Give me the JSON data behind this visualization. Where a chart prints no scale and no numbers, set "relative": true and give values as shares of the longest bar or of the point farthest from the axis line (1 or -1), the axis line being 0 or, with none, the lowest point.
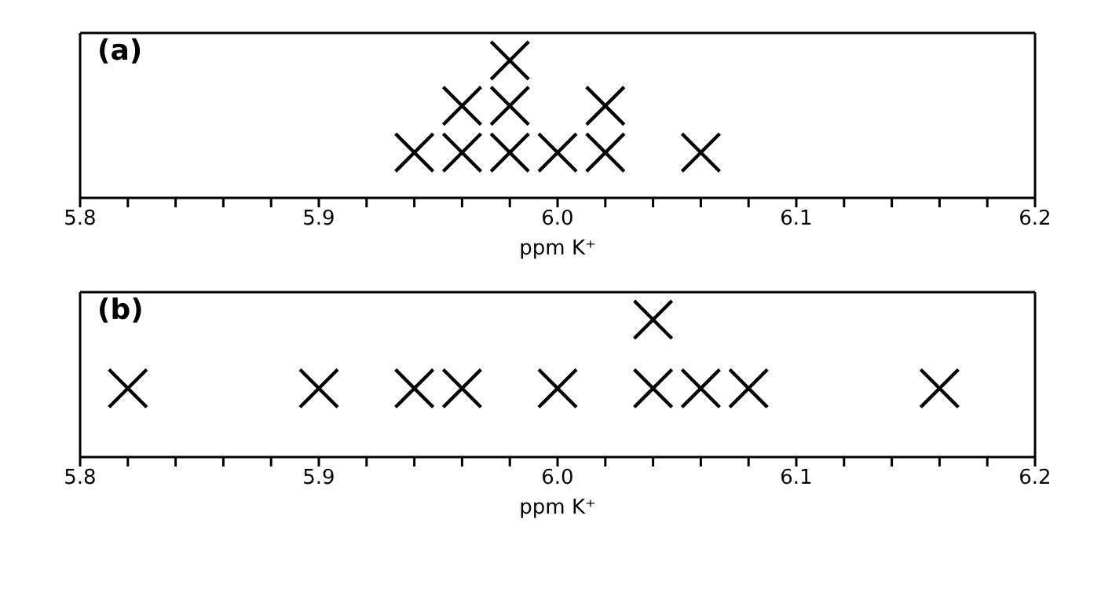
{
  "chart_data": [
    {
      "type": "scatter",
      "title": "(a)",
      "xlabel": "ppm K⁺",
      "marker": "cross",
      "relative": true,
      "tick_labels": "x",
      "legend": false,
      "xlim": [
        5.8,
        6.2
      ],
      "xticks": [
        5.8,
        {
          "value": 5.82,
          "label": null
        },
        {
          "value": 5.84,
          "label": null
        },
        {
          "value": 5.86,
          "label": null
        },
        {
          "value": 5.88,
          "label": null
        },
        5.9,
        {
          "value": 5.92,
          "label": null
        },
        {
          "value": 5.94,
          "label": null
        },
        {
          "value": 5.96,
          "label": null
        },
        {
          "value": 5.98,
          "label": null
        },
        {
          "value": 6.0,
          "label": "6.0"
        },
        {
          "value": 6.02,
          "label": null
        },
        {
          "value": 6.04,
          "label": null
        },
        {
          "value": 6.06,
          "label": null
        },
        {
          "value": 6.08,
          "label": null
        },
        6.1,
        {
          "value": 6.12,
          "label": null
        },
        {
          "value": 6.14,
          "label": null
        },
        {
          "value": 6.16,
          "label": null
        },
        {
          "value": 6.18,
          "label": null
        },
        6.2
      ],
      "series": [
        {
          "color": "#000000",
          "x": [
            5.94,
            5.96,
            5.96,
            5.98,
            5.98,
            5.98,
            6.0,
            6.02,
            6.02,
            6.06
          ],
          "values": [
            0.33,
            0.33,
            0.67,
            0.33,
            0.67,
            1,
            0.33,
            0.33,
            0.67,
            0.33
          ]
        }
      ]
    },
    {
      "type": "scatter",
      "title": "(b)",
      "xlabel": "ppm K⁺",
      "marker": "cross",
      "relative": true,
      "tick_labels": "x",
      "legend": false,
      "xlim": [
        5.8,
        6.2
      ],
      "xticks": [
        5.8,
        {
          "value": 5.82,
          "label": null
        },
        {
          "value": 5.84,
          "label": null
        },
        {
          "value": 5.86,
          "label": null
        },
        {
          "value": 5.88,
          "label": null
        },
        5.9,
        {
          "value": 5.92,
          "label": null
        },
        {
          "value": 5.94,
          "label": null
        },
        {
          "value": 5.96,
          "label": null
        },
        {
          "value": 5.98,
          "label": null
        },
        {
          "value": 6.0,
          "label": "6.0"
        },
        {
          "value": 6.02,
          "label": null
        },
        {
          "value": 6.04,
          "label": null
        },
        {
          "value": 6.06,
          "label": null
        },
        {
          "value": 6.08,
          "label": null
        },
        6.1,
        {
          "value": 6.12,
          "label": null
        },
        {
          "value": 6.14,
          "label": null
        },
        {
          "value": 6.16,
          "label": null
        },
        {
          "value": 6.18,
          "label": null
        },
        6.2
      ],
      "series": [
        {
          "color": "#000000",
          "x": [
            5.82,
            5.9,
            5.94,
            5.96,
            6.0,
            6.04,
            6.04,
            6.06,
            6.08,
            6.16
          ],
          "values": [
            0.5,
            0.5,
            0.5,
            0.5,
            0.5,
            0.5,
            1,
            0.5,
            0.5,
            0.5
          ]
        }
      ]
    }
  ]
}
